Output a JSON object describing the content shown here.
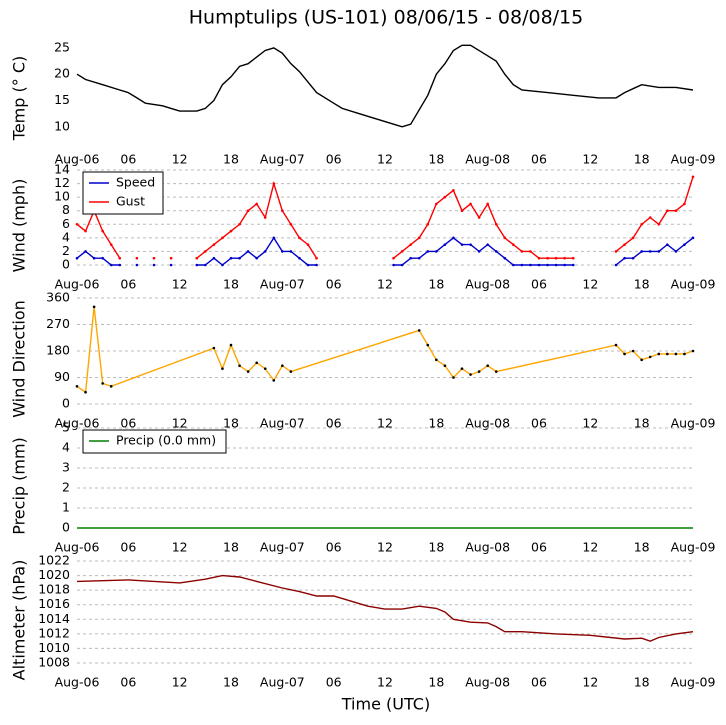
{
  "chart_data": [
    {
      "type": "line",
      "title": "Humptulips (US-101) 08/06/15 - 08/08/15",
      "y_label": "Temp (° C)",
      "grid": false,
      "xlim": [
        0,
        72
      ],
      "xticks": [
        {
          "value": 0,
          "label": "Aug-06"
        },
        {
          "value": 6,
          "label": "06"
        },
        {
          "value": 12,
          "label": "12"
        },
        {
          "value": 18,
          "label": "18"
        },
        {
          "value": 24,
          "label": "Aug-07"
        },
        {
          "value": 30,
          "label": "06"
        },
        {
          "value": 36,
          "label": "12"
        },
        {
          "value": 42,
          "label": "18"
        },
        {
          "value": 48,
          "label": "Aug-08"
        },
        {
          "value": 54,
          "label": "06"
        },
        {
          "value": 60,
          "label": "12"
        },
        {
          "value": 66,
          "label": "18"
        },
        {
          "value": 72,
          "label": "Aug-09"
        }
      ],
      "ylim": [
        7.5,
        26.5
      ],
      "yticks": [
        10,
        15,
        20,
        25
      ],
      "x": [
        0,
        1,
        3,
        5,
        6,
        7,
        8,
        10,
        11,
        12,
        14,
        15,
        16,
        17,
        18,
        19,
        20,
        22,
        23,
        24,
        25,
        26,
        27,
        28,
        30,
        31,
        33,
        35,
        36,
        37,
        38,
        39,
        41,
        42,
        43,
        44,
        45,
        46,
        48,
        49,
        50,
        51,
        52,
        55,
        58,
        61,
        63,
        64,
        66,
        68,
        70,
        72
      ],
      "series": [
        {
          "color": "#000000",
          "values": [
            20,
            19,
            18,
            17,
            16.5,
            15.5,
            14.5,
            14,
            13.5,
            13,
            13,
            13.5,
            15,
            18,
            19.5,
            21.5,
            22,
            24.5,
            25,
            24,
            22,
            20.5,
            18.5,
            16.5,
            14.5,
            13.5,
            12.5,
            11.5,
            11,
            10.5,
            10,
            10.5,
            16,
            20,
            22,
            24.5,
            25.5,
            25.5,
            23.5,
            22.5,
            20,
            18,
            17,
            16.5,
            16,
            15.5,
            15.5,
            16.5,
            18,
            17.5,
            17.5,
            17
          ]
        }
      ]
    },
    {
      "type": "line",
      "y_label": "Wind (mph)",
      "grid": true,
      "markers": true,
      "legend": "upper left",
      "xlim": [
        0,
        72
      ],
      "xticks": [
        {
          "value": 0,
          "label": "Aug-06"
        },
        {
          "value": 6,
          "label": "06"
        },
        {
          "value": 12,
          "label": "12"
        },
        {
          "value": 18,
          "label": "18"
        },
        {
          "value": 24,
          "label": "Aug-07"
        },
        {
          "value": 30,
          "label": "06"
        },
        {
          "value": 36,
          "label": "12"
        },
        {
          "value": 42,
          "label": "18"
        },
        {
          "value": 48,
          "label": "Aug-08"
        },
        {
          "value": 54,
          "label": "06"
        },
        {
          "value": 60,
          "label": "12"
        },
        {
          "value": 66,
          "label": "18"
        },
        {
          "value": 72,
          "label": "Aug-09"
        }
      ],
      "ylim": [
        0,
        14
      ],
      "yticks": [
        0,
        2,
        4,
        6,
        8,
        10,
        12,
        14
      ],
      "x": [
        0,
        1,
        2,
        3,
        4,
        5,
        6,
        7,
        8,
        9,
        10,
        11,
        12,
        13,
        14,
        15,
        16,
        17,
        18,
        19,
        20,
        21,
        22,
        23,
        24,
        25,
        26,
        27,
        28,
        29,
        30,
        31,
        32,
        33,
        34,
        35,
        36,
        37,
        38,
        39,
        40,
        41,
        42,
        43,
        44,
        45,
        46,
        47,
        48,
        49,
        50,
        51,
        52,
        53,
        54,
        55,
        56,
        57,
        58,
        59,
        60,
        61,
        62,
        63,
        64,
        65,
        66,
        67,
        68,
        69,
        70,
        71,
        72
      ],
      "series": [
        {
          "name": "Speed",
          "color": "#0000cc",
          "values": [
            1,
            2,
            1,
            1,
            0,
            0,
            null,
            0,
            null,
            0,
            null,
            0,
            null,
            null,
            0,
            0,
            1,
            0,
            1,
            1,
            2,
            1,
            2,
            4,
            2,
            2,
            1,
            0,
            0,
            null,
            null,
            null,
            null,
            null,
            null,
            null,
            null,
            0,
            0,
            1,
            1,
            2,
            2,
            3,
            4,
            3,
            3,
            2,
            3,
            2,
            1,
            0,
            0,
            0,
            0,
            0,
            0,
            0,
            0,
            null,
            null,
            null,
            null,
            0,
            1,
            1,
            2,
            2,
            2,
            3,
            2,
            3,
            4
          ]
        },
        {
          "name": "Gust",
          "color": "#ff0000",
          "values": [
            6,
            5,
            8,
            5,
            3,
            1,
            null,
            1,
            null,
            1,
            null,
            1,
            null,
            null,
            1,
            2,
            3,
            4,
            5,
            6,
            8,
            9,
            7,
            12,
            8,
            6,
            4,
            3,
            1,
            null,
            null,
            null,
            null,
            null,
            null,
            null,
            null,
            1,
            2,
            3,
            4,
            6,
            9,
            10,
            11,
            8,
            9,
            7,
            9,
            6,
            4,
            3,
            2,
            2,
            1,
            1,
            1,
            1,
            1,
            null,
            null,
            null,
            null,
            2,
            3,
            4,
            6,
            7,
            6,
            8,
            8,
            9,
            13
          ]
        }
      ]
    },
    {
      "type": "line",
      "y_label": "Wind Direction",
      "grid": true,
      "markers": true,
      "xlim": [
        0,
        72
      ],
      "xticks": [
        {
          "value": 0,
          "label": "Aug-06"
        },
        {
          "value": 6,
          "label": "06"
        },
        {
          "value": 12,
          "label": "12"
        },
        {
          "value": 18,
          "label": "18"
        },
        {
          "value": 24,
          "label": "Aug-07"
        },
        {
          "value": 30,
          "label": "06"
        },
        {
          "value": 36,
          "label": "12"
        },
        {
          "value": 42,
          "label": "18"
        },
        {
          "value": 48,
          "label": "Aug-08"
        },
        {
          "value": 54,
          "label": "06"
        },
        {
          "value": 60,
          "label": "12"
        },
        {
          "value": 66,
          "label": "18"
        },
        {
          "value": 72,
          "label": "Aug-09"
        }
      ],
      "ylim": [
        0,
        360
      ],
      "yticks": [
        0,
        90,
        180,
        270,
        360
      ],
      "x": [
        0,
        1,
        2,
        3,
        4,
        16,
        17,
        18,
        19,
        20,
        21,
        22,
        23,
        24,
        25,
        40,
        41,
        42,
        43,
        44,
        45,
        46,
        47,
        48,
        49,
        63,
        64,
        65,
        66,
        67,
        68,
        69,
        70,
        71,
        72
      ],
      "series": [
        {
          "color": "#ffa500",
          "marker_color": "#000000",
          "values": [
            60,
            40,
            330,
            70,
            60,
            190,
            120,
            200,
            130,
            110,
            140,
            120,
            80,
            130,
            110,
            250,
            200,
            150,
            130,
            90,
            120,
            100,
            110,
            130,
            110,
            200,
            170,
            180,
            150,
            160,
            170,
            170,
            170,
            170,
            180
          ]
        }
      ]
    },
    {
      "type": "line",
      "y_label": "Precip (mm)",
      "grid": true,
      "legend": "upper left",
      "xlim": [
        0,
        72
      ],
      "xticks": [
        {
          "value": 0,
          "label": "Aug-06"
        },
        {
          "value": 6,
          "label": "06"
        },
        {
          "value": 12,
          "label": "12"
        },
        {
          "value": 18,
          "label": "18"
        },
        {
          "value": 24,
          "label": "Aug-07"
        },
        {
          "value": 30,
          "label": "06"
        },
        {
          "value": 36,
          "label": "12"
        },
        {
          "value": 42,
          "label": "18"
        },
        {
          "value": 48,
          "label": "Aug-08"
        },
        {
          "value": 54,
          "label": "06"
        },
        {
          "value": 60,
          "label": "12"
        },
        {
          "value": 66,
          "label": "18"
        },
        {
          "value": 72,
          "label": "Aug-09"
        }
      ],
      "ylim": [
        0,
        5
      ],
      "yticks": [
        0,
        1,
        2,
        3,
        4,
        5
      ],
      "x": [
        0,
        72
      ],
      "series": [
        {
          "name": "Precip (0.0 mm)",
          "color": "#008000",
          "values": [
            0,
            0
          ]
        }
      ]
    },
    {
      "type": "line",
      "y_label": "Altimeter (hPa)",
      "x_label": "Time (UTC)",
      "grid": true,
      "xlim": [
        0,
        72
      ],
      "xticks": [
        {
          "value": 0,
          "label": "Aug-06"
        },
        {
          "value": 6,
          "label": "06"
        },
        {
          "value": 12,
          "label": "12"
        },
        {
          "value": 18,
          "label": "18"
        },
        {
          "value": 24,
          "label": "Aug-07"
        },
        {
          "value": 30,
          "label": "06"
        },
        {
          "value": 36,
          "label": "12"
        },
        {
          "value": 42,
          "label": "18"
        },
        {
          "value": 48,
          "label": "Aug-08"
        },
        {
          "value": 54,
          "label": "06"
        },
        {
          "value": 60,
          "label": "12"
        },
        {
          "value": 66,
          "label": "18"
        },
        {
          "value": 72,
          "label": "Aug-09"
        }
      ],
      "ylim": [
        1008,
        1022
      ],
      "yticks": [
        1008,
        1010,
        1012,
        1014,
        1016,
        1018,
        1020,
        1022
      ],
      "x": [
        0,
        6,
        12,
        15,
        17,
        19,
        21,
        24,
        26,
        28,
        30,
        32,
        34,
        36,
        38,
        40,
        42,
        43,
        44,
        46,
        48,
        49,
        50,
        52,
        56,
        60,
        64,
        66,
        67,
        68,
        70,
        72
      ],
      "series": [
        {
          "color": "#8b0000",
          "values": [
            1019.2,
            1019.4,
            1019,
            1019.5,
            1020,
            1019.8,
            1019.2,
            1018.3,
            1017.8,
            1017.2,
            1017.2,
            1016.5,
            1015.8,
            1015.4,
            1015.4,
            1015.8,
            1015.5,
            1015,
            1014,
            1013.6,
            1013.5,
            1013,
            1012.3,
            1012.3,
            1012,
            1011.8,
            1011.3,
            1011.4,
            1011,
            1011.5,
            1012,
            1012.3
          ]
        }
      ]
    }
  ]
}
